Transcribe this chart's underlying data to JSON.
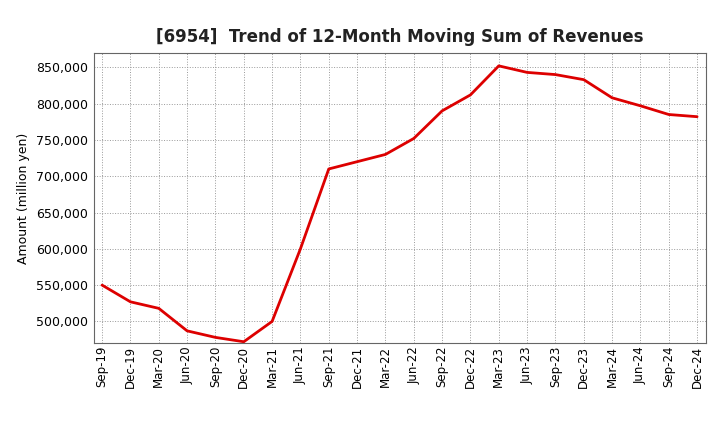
{
  "title": "[6954]  Trend of 12-Month Moving Sum of Revenues",
  "ylabel": "Amount (million yen)",
  "line_color": "#DD0000",
  "line_width": 2.0,
  "background_color": "#ffffff",
  "grid_color": "#999999",
  "plot_bg_color": "#ffffff",
  "ylim": [
    470000,
    870000
  ],
  "yticks": [
    500000,
    550000,
    600000,
    650000,
    700000,
    750000,
    800000,
    850000
  ],
  "x_labels": [
    "Sep-19",
    "Dec-19",
    "Mar-20",
    "Jun-20",
    "Sep-20",
    "Dec-20",
    "Mar-21",
    "Jun-21",
    "Sep-21",
    "Dec-21",
    "Mar-22",
    "Jun-22",
    "Sep-22",
    "Dec-22",
    "Mar-23",
    "Jun-23",
    "Sep-23",
    "Dec-23",
    "Mar-24",
    "Jun-24",
    "Sep-24",
    "Dec-24"
  ],
  "values": [
    550000,
    527000,
    518000,
    487000,
    478000,
    472000,
    500000,
    600000,
    710000,
    720000,
    730000,
    752000,
    790000,
    812000,
    852000,
    843000,
    840000,
    833000,
    808000,
    797000,
    785000,
    782000
  ]
}
